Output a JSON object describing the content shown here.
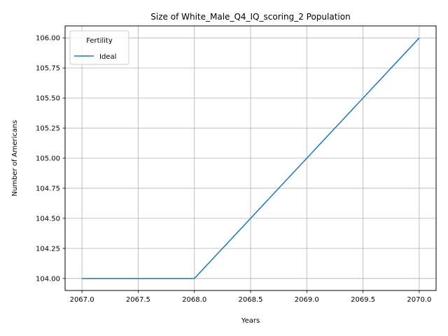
{
  "chart_data": {
    "type": "line",
    "title": "Size of White_Male_Q4_IQ_scoring_2 Population",
    "xlabel": "Years",
    "ylabel": "Number of Americans",
    "xlim": [
      2066.85,
      2070.15
    ],
    "ylim": [
      103.9,
      106.1
    ],
    "xticks": [
      2067.0,
      2067.5,
      2068.0,
      2068.5,
      2069.0,
      2069.5,
      2070.0
    ],
    "xtick_labels": [
      "2067.0",
      "2067.5",
      "2068.0",
      "2068.5",
      "2069.0",
      "2069.5",
      "2070.0"
    ],
    "yticks": [
      104.0,
      104.25,
      104.5,
      104.75,
      105.0,
      105.25,
      105.5,
      105.75,
      106.0
    ],
    "ytick_labels": [
      "104.00",
      "104.25",
      "104.50",
      "104.75",
      "105.00",
      "105.25",
      "105.50",
      "105.75",
      "106.00"
    ],
    "grid": true,
    "legend": {
      "title": "Fertility",
      "placement": "top-left"
    },
    "series": [
      {
        "name": "Ideal",
        "color": "#1f77b4",
        "x": [
          2067,
          2068,
          2069,
          2070
        ],
        "y": [
          104,
          104,
          105,
          106
        ]
      }
    ]
  }
}
